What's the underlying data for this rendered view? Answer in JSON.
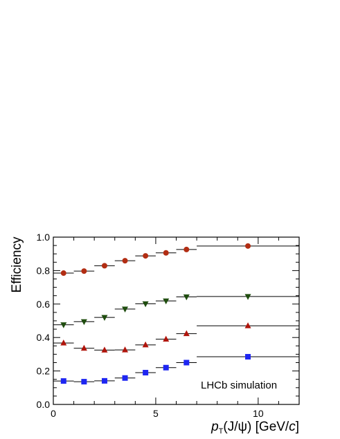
{
  "chart_data": {
    "type": "scatter",
    "title": "",
    "xlabel_italic": "p",
    "xlabel_sub": "T",
    "xlabel_paren": "(J/ψ) [GeV/",
    "xlabel_c": "c",
    "xlabel_end": "]",
    "ylabel": "Efficiency",
    "annotation": "LHCb simulation",
    "xlim": [
      0,
      12
    ],
    "ylim": [
      0,
      1.0
    ],
    "x_ticks": [
      0,
      5,
      10
    ],
    "x_tick_labels": [
      "0",
      "5",
      "10"
    ],
    "y_ticks": [
      0,
      0.2,
      0.4,
      0.6,
      0.8,
      1.0
    ],
    "y_tick_labels": [
      "0.0",
      "0.2",
      "0.4",
      "0.6",
      "0.8",
      "1.0"
    ],
    "bins": [
      [
        0,
        1
      ],
      [
        1,
        2
      ],
      [
        2,
        3
      ],
      [
        3,
        4
      ],
      [
        4,
        5
      ],
      [
        5,
        6
      ],
      [
        6,
        7
      ],
      [
        7,
        12
      ]
    ],
    "x": [
      0.5,
      1.5,
      2.5,
      3.5,
      4.5,
      5.5,
      6.5,
      9.5
    ],
    "series": [
      {
        "marker": "circle",
        "color": "#b22d13",
        "values": [
          0.785,
          0.797,
          0.829,
          0.859,
          0.888,
          0.906,
          0.926,
          0.947
        ]
      },
      {
        "marker": "triangle-down",
        "color": "#1f4d0f",
        "values": [
          0.476,
          0.495,
          0.52,
          0.57,
          0.602,
          0.619,
          0.643,
          0.645
        ]
      },
      {
        "marker": "triangle-up",
        "color": "#b0140b",
        "values": [
          0.367,
          0.336,
          0.325,
          0.326,
          0.356,
          0.39,
          0.423,
          0.47
        ]
      },
      {
        "marker": "square",
        "color": "#1e26f2",
        "values": [
          0.14,
          0.136,
          0.141,
          0.158,
          0.19,
          0.22,
          0.25,
          0.285
        ]
      }
    ]
  }
}
